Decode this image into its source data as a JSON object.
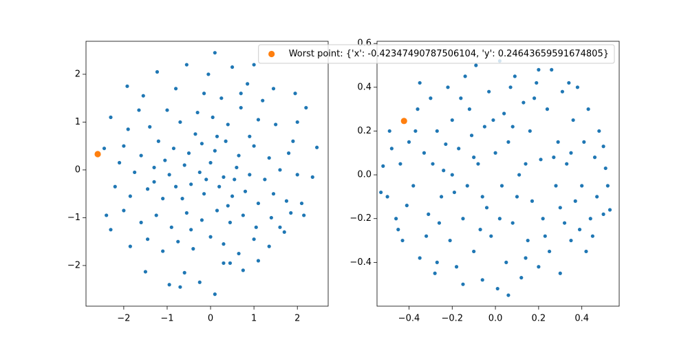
{
  "chart_data": [
    {
      "type": "scatter",
      "xlim": [
        -2.87,
        2.71
      ],
      "ylim": [
        -2.85,
        2.69
      ],
      "xticks": [
        {
          "value": -2,
          "label": "−2"
        },
        {
          "value": -1,
          "label": "−1"
        },
        0,
        1,
        2
      ],
      "yticks": [
        {
          "value": -2,
          "label": "−2"
        },
        {
          "value": -1,
          "label": "−1"
        },
        0,
        1,
        2
      ],
      "series": [
        {
          "color": "#1f77b4",
          "x": [
            -1.92,
            -1.55,
            -1.23,
            -0.55,
            -0.05,
            0.5,
            1.0,
            0.1,
            0.85,
            1.45,
            1.95,
            2.2,
            -2.3,
            -1.9,
            -1.4,
            -1.0,
            -0.7,
            -0.3,
            0.05,
            0.4,
            0.7,
            1.1,
            1.5,
            1.9,
            -2.45,
            -2.0,
            -1.6,
            -1.2,
            -0.85,
            -0.5,
            -0.2,
            0.1,
            0.35,
            0.65,
            1.0,
            1.35,
            1.8,
            2.45,
            -2.1,
            -1.75,
            -1.3,
            -0.95,
            -0.6,
            -0.25,
            0.0,
            0.3,
            0.6,
            0.9,
            1.25,
            1.6,
            2.0,
            2.35,
            -2.2,
            -1.85,
            -1.45,
            -1.1,
            -0.8,
            -0.45,
            -0.15,
            0.2,
            0.5,
            0.8,
            1.1,
            1.45,
            1.75,
            2.1,
            -2.4,
            -2.0,
            -1.6,
            -1.25,
            -0.9,
            -0.55,
            -0.2,
            0.15,
            0.45,
            0.75,
            1.05,
            1.4,
            1.85,
            2.15,
            -2.3,
            -1.85,
            -1.45,
            -1.1,
            -0.75,
            -0.4,
            0.0,
            0.3,
            0.65,
            1.0,
            1.35,
            1.7,
            -1.5,
            -0.95,
            -0.6,
            -0.25,
            0.1,
            0.45,
            0.75,
            1.1,
            -0.7,
            0.3,
            -0.1,
            0.15,
            -0.35,
            0.55,
            -0.65,
            0.25,
            -0.8,
            1.2,
            -1.65,
            -0.15,
            0.9,
            -1.05,
            0.4,
            -0.45,
            1.6,
            -1.3,
            0.7,
            2.0
          ],
          "y": [
            1.75,
            1.55,
            2.05,
            2.2,
            2.0,
            2.15,
            2.2,
            2.45,
            1.8,
            1.7,
            1.6,
            1.3,
            1.1,
            0.85,
            0.9,
            1.25,
            1.0,
            1.2,
            1.1,
            0.95,
            1.3,
            1.05,
            0.95,
            0.6,
            0.45,
            0.5,
            0.3,
            0.6,
            0.45,
            0.35,
            0.55,
            0.4,
            0.6,
            0.3,
            0.5,
            0.25,
            0.35,
            0.47,
            0.15,
            -0.05,
            0.05,
            -0.1,
            0.1,
            -0.05,
            0.15,
            -0.15,
            0.05,
            -0.1,
            -0.2,
            0.0,
            -0.1,
            -0.15,
            -0.35,
            -0.55,
            -0.4,
            -0.6,
            -0.35,
            -0.3,
            -0.5,
            -0.35,
            -0.55,
            -0.45,
            -0.7,
            -0.5,
            -0.65,
            -0.7,
            -0.95,
            -0.85,
            -1.1,
            -0.95,
            -1.2,
            -0.9,
            -1.05,
            -0.85,
            -1.1,
            -0.95,
            -1.2,
            -1.0,
            -0.9,
            -0.95,
            -1.25,
            -1.6,
            -1.45,
            -1.7,
            -1.5,
            -1.65,
            -1.4,
            -1.55,
            -1.75,
            -1.45,
            -1.6,
            -1.3,
            -2.13,
            -2.4,
            -2.15,
            -2.35,
            -2.6,
            -1.95,
            -2.1,
            -1.9,
            -2.45,
            -1.95,
            -0.2,
            0.7,
            0.75,
            -0.2,
            -0.6,
            1.5,
            1.7,
            1.45,
            1.25,
            1.6,
            0.7,
            0.2,
            -0.75,
            -1.25,
            -1.2,
            -0.25,
            1.6,
            1.0
          ]
        },
        {
          "color": "#ff7f0e",
          "x": [
            -2.6
          ],
          "y": [
            0.33
          ]
        }
      ]
    },
    {
      "type": "scatter",
      "xlim": [
        -0.548,
        0.573
      ],
      "ylim": [
        -0.6,
        0.61
      ],
      "xticks": [
        {
          "value": -0.4,
          "label": "−0.4"
        },
        {
          "value": -0.2,
          "label": "−0.2"
        },
        {
          "value": 0,
          "label": "0.0"
        },
        0.2,
        0.4
      ],
      "yticks": [
        {
          "value": -0.4,
          "label": "−0.4"
        },
        {
          "value": -0.2,
          "label": "−0.2"
        },
        {
          "value": 0,
          "label": "0.0"
        },
        0.2,
        0.4,
        0.6
      ],
      "legend": "upper right",
      "series": [
        {
          "color": "#1f77b4",
          "x": [
            -0.52,
            -0.5,
            -0.48,
            -0.46,
            -0.44,
            -0.43,
            -0.4,
            -0.38,
            -0.36,
            -0.35,
            -0.33,
            -0.31,
            -0.3,
            -0.28,
            -0.27,
            -0.25,
            -0.24,
            -0.22,
            -0.21,
            -0.2,
            -0.18,
            -0.17,
            -0.15,
            -0.14,
            -0.13,
            -0.12,
            -0.1,
            -0.09,
            -0.08,
            -0.06,
            -0.05,
            -0.04,
            -0.03,
            -0.02,
            0.0,
            0.01,
            0.02,
            0.03,
            0.04,
            0.05,
            0.06,
            0.08,
            0.09,
            0.1,
            0.11,
            0.12,
            0.13,
            0.15,
            0.16,
            0.17,
            0.19,
            0.2,
            0.21,
            0.22,
            0.24,
            0.25,
            0.26,
            0.28,
            0.29,
            0.3,
            0.31,
            0.32,
            0.33,
            0.35,
            0.36,
            0.37,
            0.38,
            0.4,
            0.41,
            0.42,
            0.43,
            0.44,
            0.46,
            0.47,
            0.48,
            0.5,
            0.51,
            0.52,
            0.53,
            0.5,
            -0.53,
            -0.49,
            -0.45,
            -0.41,
            -0.37,
            -0.32,
            -0.29,
            -0.26,
            -0.23,
            -0.19,
            -0.16,
            -0.11,
            -0.07,
            -0.01,
            0.07,
            0.14,
            0.18,
            0.23,
            0.27,
            0.34,
            0.39,
            0.45,
            0.14,
            -0.06,
            0.02,
            -0.2,
            0.3,
            0.35,
            -0.1,
            0.08,
            -0.35,
            0.2,
            -0.15,
            0.06,
            -0.27
          ],
          "y": [
            0.04,
            -0.1,
            0.12,
            -0.2,
            0.05,
            -0.3,
            0.15,
            -0.05,
            0.3,
            -0.38,
            0.1,
            -0.18,
            0.35,
            -0.45,
            0.2,
            -0.1,
            0.02,
            0.4,
            -0.3,
            0.25,
            -0.42,
            0.12,
            -0.2,
            0.45,
            -0.05,
            0.3,
            -0.35,
            0.5,
            0.05,
            -0.48,
            0.22,
            -0.15,
            0.38,
            -0.28,
            0.1,
            -0.52,
            0.52,
            -0.05,
            0.28,
            -0.4,
            0.15,
            -0.22,
            0.45,
            -0.1,
            0.0,
            -0.47,
            0.33,
            -0.3,
            0.2,
            -0.12,
            0.42,
            -0.42,
            0.07,
            -0.2,
            0.3,
            -0.35,
            0.48,
            -0.05,
            0.15,
            -0.45,
            0.38,
            -0.22,
            0.05,
            -0.3,
            0.25,
            -0.12,
            0.4,
            -0.05,
            0.15,
            -0.35,
            0.3,
            -0.2,
            0.08,
            -0.1,
            0.2,
            -0.18,
            0.03,
            -0.05,
            -0.16,
            0.13,
            -0.08,
            0.2,
            -0.25,
            -0.14,
            0.2,
            -0.28,
            0.05,
            -0.22,
            0.14,
            -0.08,
            0.35,
            0.18,
            -0.25,
            0.25,
            0.4,
            -0.38,
            0.35,
            -0.28,
            0.08,
            0.42,
            -0.25,
            -0.28,
            0.05,
            -0.1,
            -0.2,
            0.0,
            -0.15,
            0.1,
            0.08,
            0.22,
            0.42,
            0.48,
            -0.5,
            -0.55,
            -0.4
          ]
        },
        {
          "name": "Worst point: {'x': -0.42347490787506104, 'y': 0.24643659591674805}",
          "color": "#ff7f0e",
          "x": [
            -0.423
          ],
          "y": [
            0.246
          ]
        }
      ]
    }
  ]
}
